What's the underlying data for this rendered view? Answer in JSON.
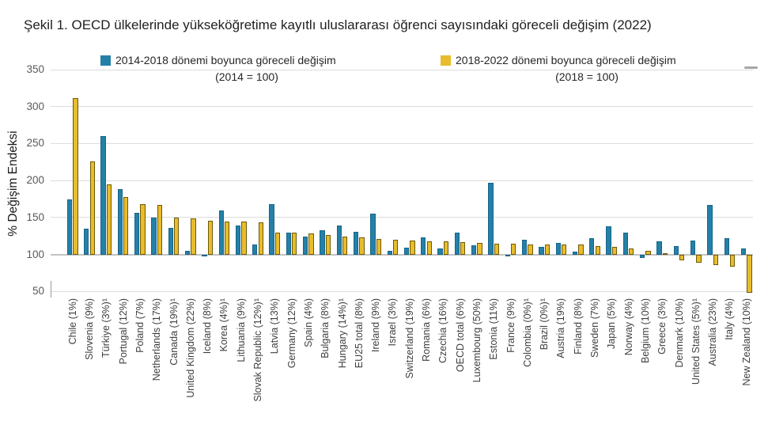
{
  "title": "Şekil 1. OECD ülkelerinde yükseköğretime kayıtlı uluslararası öğrenci sayısındaki göreceli değişim (2022)",
  "legend": [
    {
      "label": "2014-2018 dönemi boyunca göreceli değişim",
      "sublabel": "(2014 = 100)",
      "color": "#2480A6"
    },
    {
      "label": "2018-2022 dönemi boyunca göreceli değişim",
      "sublabel": "(2018 = 100)",
      "color": "#E8BC2D"
    }
  ],
  "yaxis": {
    "title": "% Değişim Endeksi",
    "ticks": [
      350,
      300,
      250,
      200,
      150,
      100,
      50
    ]
  },
  "chart_data": {
    "type": "bar",
    "title": "Şekil 1. OECD ülkelerinde yükseköğretime kayıtlı uluslararası öğrenci sayısındaki göreceli değişim (2022)",
    "ylabel": "% Değişim Endeksi",
    "ylim": [
      50,
      350
    ],
    "baseline": 100,
    "grid": true,
    "legend_position": "top",
    "categories": [
      "Chile (1%)",
      "Slovenia (9%)",
      "Türkiye (3%)¹",
      "Portugal (12%)",
      "Poland (7%)",
      "Netherlands (17%)",
      "Canada (19%)¹",
      "United Kingdom (22%)",
      "Iceland (8%)",
      "Korea (4%)¹",
      "Lithuania (9%)",
      "Slovak Republic (12%)¹",
      "Latvia (13%)",
      "Germany (12%)",
      "Spain (4%)",
      "Bulgaria (8%)",
      "Hungary (14%)¹",
      "EU25 total (8%)",
      "Ireland (9%)",
      "Israel (3%)",
      "Switzerland (19%)",
      "Romania (6%)",
      "Czechia (16%)",
      "OECD total (6%)",
      "Luxembourg (50%)",
      "Estonia (11%)",
      "France (9%)",
      "Colombia (0%)¹",
      "Brazil (0%)¹",
      "Austria (19%)",
      "Finland (8%)",
      "Sweden (7%)",
      "Japan (5%)",
      "Norway (4%)",
      "Belgium (10%)",
      "Greece (3%)",
      "Denmark (10%)",
      "United States (5%)¹",
      "Australia (23%)",
      "Italy (4%)",
      "New Zealand (10%)"
    ],
    "series": [
      {
        "name": "2014-2018 dönemi boyunca göreceli değişim (2014 = 100)",
        "color": "#2480A6",
        "values": [
          175,
          135,
          260,
          188,
          156,
          150,
          136,
          105,
          98,
          160,
          139,
          114,
          168,
          130,
          124,
          133,
          139,
          131,
          155,
          105,
          109,
          123,
          108,
          130,
          112,
          197,
          98,
          120,
          110,
          116,
          104,
          122,
          138,
          130,
          95,
          118,
          111,
          119,
          167,
          122,
          108
        ]
      },
      {
        "name": "2018-2022 dönemi boyunca göreceli değişim (2018 = 100)",
        "color": "#E8BC2D",
        "values": [
          312,
          226,
          195,
          178,
          168,
          167,
          150,
          149,
          146,
          145,
          144,
          143,
          130,
          130,
          128,
          126,
          124,
          123,
          121,
          120,
          119,
          118,
          118,
          117,
          116,
          115,
          115,
          114,
          114,
          113,
          113,
          111,
          110,
          108,
          105,
          100,
          92,
          89,
          86,
          84,
          48
        ]
      }
    ]
  }
}
